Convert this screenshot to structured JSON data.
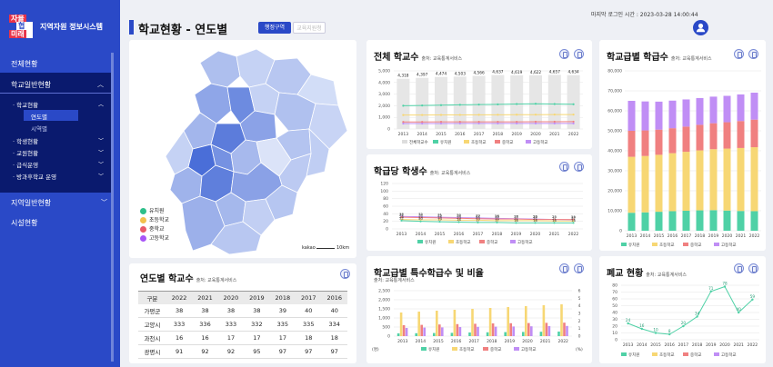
{
  "sidebar": {
    "logo": [
      "자율",
      "협력",
      "미래"
    ],
    "system_name": "지역자원 정보시스템",
    "menu": {
      "overview": "전체현황",
      "school_general": "학교일반현황",
      "school_status": "학교현황",
      "by_year": "연도별",
      "by_city": "시역별",
      "students": "학생현황",
      "staff": "교원현황",
      "meals": "급식운영",
      "afterschool": "방과후학교 운영",
      "regional_general": "지역일반현황",
      "facilities": "시설현황"
    }
  },
  "header": {
    "title": "학교현황 - 연도별",
    "tab_region": "행정구역",
    "tab_office": "교육지원청",
    "last_login": "마지막 로그인 시간 : 2023-03-28 14:00:44"
  },
  "map": {
    "legend": [
      {
        "label": "유치원",
        "color": "#2dbf8a"
      },
      {
        "label": "초등학교",
        "color": "#f2c14e"
      },
      {
        "label": "중학교",
        "color": "#e85a6a"
      },
      {
        "label": "고등학교",
        "color": "#a855f7"
      }
    ],
    "attribution": "kakao",
    "scale": "10km"
  },
  "source_label": "출처: 교육통계서비스",
  "legend_labels": [
    "유치원",
    "초등학교",
    "중학교",
    "고등학교"
  ],
  "total_schools": {
    "title": "전체 학교수",
    "legend_total": "전체학교수",
    "chart_data": {
      "type": "bar",
      "categories": [
        "2013",
        "2014",
        "2015",
        "2016",
        "2017",
        "2018",
        "2019",
        "2020",
        "2021",
        "2022"
      ],
      "totals": [
        4318,
        4397,
        4474,
        4503,
        4566,
        4637,
        4619,
        4622,
        4657,
        4634
      ],
      "ylim": [
        0,
        5000
      ],
      "yticks": [
        "5,000",
        "4,000",
        "3,000",
        "2,000",
        "1,000",
        "0"
      ],
      "total_labels": [
        "4,318",
        "4,397",
        "4,474",
        "4,503",
        "4,566",
        "4,637",
        "4,619",
        "4,622",
        "4,657",
        "4,634"
      ],
      "series": [
        {
          "name": "유치원",
          "values": [
            2000,
            2020,
            2050,
            2080,
            2100,
            2120,
            2150,
            2170,
            2150,
            2130
          ]
        },
        {
          "name": "초등학교",
          "values": [
            1200,
            1205,
            1210,
            1215,
            1220,
            1225,
            1230,
            1235,
            1240,
            1240
          ]
        },
        {
          "name": "중학교",
          "values": [
            610,
            610,
            615,
            615,
            615,
            620,
            620,
            625,
            625,
            630
          ]
        },
        {
          "name": "고등학교",
          "values": [
            470,
            470,
            472,
            475,
            475,
            478,
            478,
            480,
            480,
            480
          ]
        }
      ]
    }
  },
  "class_size": {
    "title": "학교급별 학급수",
    "chart_data": {
      "type": "bar",
      "categories": [
        "2013",
        "2014",
        "2015",
        "2016",
        "2017",
        "2018",
        "2019",
        "2020",
        "2021",
        "2022"
      ],
      "ylim": [
        0,
        80000
      ],
      "yticks": [
        "80,000",
        "70,000",
        "60,000",
        "50,000",
        "40,000",
        "30,000",
        "20,000",
        "10,000",
        "0"
      ],
      "series": [
        {
          "name": "유치원",
          "values": [
            9000,
            9200,
            9500,
            9800,
            10000,
            10200,
            10300,
            10100,
            9900,
            9800
          ]
        },
        {
          "name": "초등학교",
          "values": [
            28000,
            28200,
            28500,
            29000,
            29500,
            30000,
            30500,
            31000,
            31500,
            32000
          ]
        },
        {
          "name": "중학교",
          "values": [
            13000,
            12800,
            12600,
            12500,
            12600,
            12800,
            13000,
            13200,
            13500,
            13800
          ]
        },
        {
          "name": "고등학교",
          "values": [
            15000,
            14500,
            14000,
            13800,
            13600,
            13400,
            13300,
            13200,
            13300,
            13500
          ]
        }
      ]
    }
  },
  "students_per_class": {
    "title": "학급당 학생수",
    "chart_data": {
      "type": "line",
      "categories": [
        "2013",
        "2014",
        "2015",
        "2016",
        "2017",
        "2018",
        "2019",
        "2020",
        "2021",
        "2022"
      ],
      "ylim": [
        0,
        120
      ],
      "yticks": [
        "120",
        "100",
        "80",
        "60",
        "40",
        "20",
        "0"
      ],
      "series": [
        {
          "name": "고등학교",
          "values": [
            33,
            32,
            31,
            30,
            29,
            28,
            27,
            26,
            25,
            24
          ]
        },
        {
          "name": "중학교",
          "values": [
            31,
            30,
            29,
            28,
            27,
            26,
            26,
            25,
            25,
            25
          ]
        },
        {
          "name": "초등학교",
          "values": [
            25,
            24,
            24,
            23,
            23,
            22,
            22,
            22,
            21,
            21
          ]
        },
        {
          "name": "유치원",
          "values": [
            22,
            20,
            19,
            18,
            17,
            17,
            16,
            16,
            16,
            16
          ]
        }
      ]
    }
  },
  "special_classes": {
    "title": "학교급별 특수학급수 및 비율",
    "y_unit_left": "(명)",
    "y_unit_right": "(%)",
    "chart_data": {
      "type": "bar",
      "categories": [
        "2013",
        "2014",
        "2015",
        "2016",
        "2017",
        "2018",
        "2019",
        "2020",
        "2021",
        "2022"
      ],
      "ylim": [
        0,
        2500
      ],
      "yticks_left": [
        "2,500",
        "2,000",
        "1,500",
        "1,000",
        "500",
        "0"
      ],
      "yticks_right": [
        "6",
        "5",
        "4",
        "3",
        "2",
        "1",
        "0"
      ],
      "series": [
        {
          "name": "유치원",
          "values": [
            150,
            160,
            170,
            180,
            200,
            210,
            220,
            230,
            240,
            250
          ]
        },
        {
          "name": "초등학교",
          "values": [
            1300,
            1350,
            1400,
            1450,
            1500,
            1550,
            1600,
            1650,
            1700,
            1750
          ]
        },
        {
          "name": "중학교",
          "values": [
            600,
            620,
            640,
            660,
            680,
            700,
            710,
            720,
            730,
            740
          ]
        },
        {
          "name": "고등학교",
          "values": [
            450,
            470,
            480,
            500,
            510,
            520,
            530,
            540,
            550,
            560
          ]
        }
      ]
    }
  },
  "closed_schools": {
    "title": "폐교 현황",
    "chart_data": {
      "type": "line",
      "categories": [
        "2013",
        "2014",
        "2015",
        "2016",
        "2017",
        "2018",
        "2019",
        "2020",
        "2021",
        "2022"
      ],
      "ylim": [
        0,
        80
      ],
      "yticks": [
        "80",
        "70",
        "60",
        "50",
        "40",
        "30",
        "20",
        "10",
        "0"
      ],
      "values": [
        24,
        16,
        10,
        8,
        20,
        34,
        71,
        78,
        40,
        59
      ]
    }
  },
  "yearly_table": {
    "title": "연도별 학교수",
    "headers": [
      "구분",
      "2022",
      "2021",
      "2020",
      "2019",
      "2018",
      "2017",
      "2016"
    ],
    "rows": [
      [
        "가평군",
        "38",
        "38",
        "38",
        "38",
        "39",
        "40",
        "40"
      ],
      [
        "고양시",
        "333",
        "336",
        "333",
        "332",
        "335",
        "335",
        "334"
      ],
      [
        "과천시",
        "16",
        "16",
        "17",
        "17",
        "17",
        "18",
        "18"
      ],
      [
        "광명시",
        "91",
        "92",
        "92",
        "95",
        "97",
        "97",
        "97"
      ]
    ]
  }
}
